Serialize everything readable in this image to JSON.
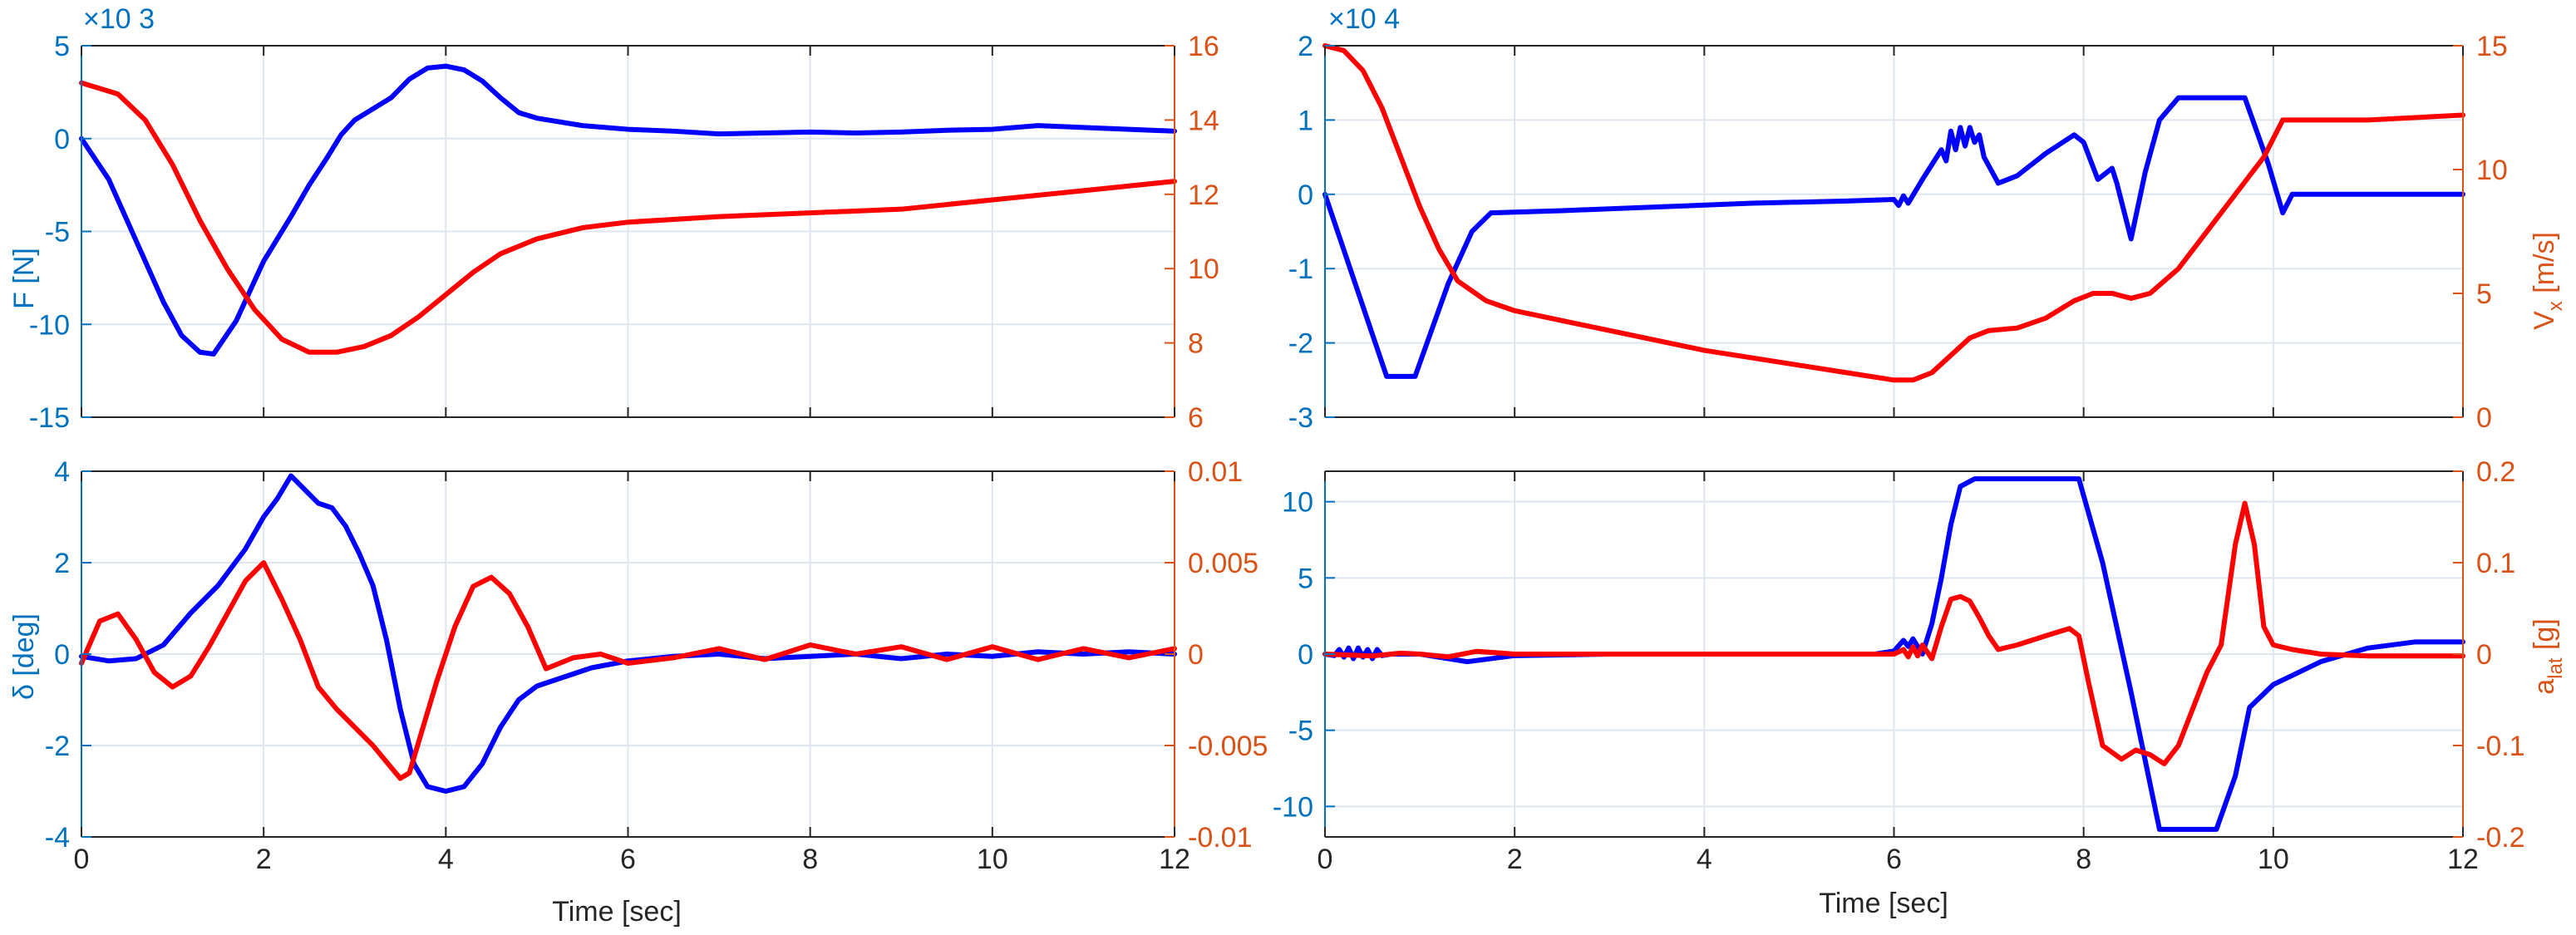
{
  "colors": {
    "left_axis": "#0072BD",
    "right_axis": "#D95319",
    "series_left": "#0000FF",
    "series_right": "#FF0000",
    "grid": "#dfe6ee",
    "axis": "#262626"
  },
  "chart_data": [
    {
      "type": "line",
      "title": "",
      "xlabel": "",
      "xlim": [
        0,
        12
      ],
      "xticks": [
        0,
        2,
        4,
        6,
        8,
        10,
        12
      ],
      "grid": true,
      "yleft": {
        "label": "F [N]",
        "exponent": "×10 3",
        "lim": [
          -15,
          5
        ],
        "ticks": [
          -15,
          -10,
          -5,
          0,
          5
        ],
        "tick_labels": [
          "-15",
          "-10",
          "-5",
          "0",
          "5"
        ]
      },
      "yright": {
        "label": "",
        "lim": [
          6,
          16
        ],
        "ticks": [
          6,
          8,
          10,
          12,
          14,
          16
        ],
        "tick_labels": [
          "6",
          "8",
          "10",
          "12",
          "14",
          "16"
        ]
      },
      "series": [
        {
          "axis": "left",
          "x": [
            0,
            0.3,
            0.6,
            0.9,
            1.1,
            1.3,
            1.45,
            1.7,
            2.0,
            2.3,
            2.5,
            2.7,
            2.85,
            3.0,
            3.2,
            3.4,
            3.6,
            3.8,
            4.0,
            4.2,
            4.4,
            4.6,
            4.8,
            5.0,
            5.5,
            6.0,
            6.5,
            7.0,
            7.5,
            8.0,
            8.5,
            9.0,
            9.5,
            10.0,
            10.5,
            11.0,
            11.5,
            12.0
          ],
          "y": [
            0,
            -2.2,
            -5.5,
            -8.8,
            -10.6,
            -11.5,
            -11.6,
            -9.8,
            -6.6,
            -4.2,
            -2.5,
            -1.0,
            0.2,
            1.0,
            1.6,
            2.2,
            3.2,
            3.8,
            3.9,
            3.7,
            3.1,
            2.2,
            1.4,
            1.1,
            0.7,
            0.5,
            0.4,
            0.25,
            0.3,
            0.35,
            0.3,
            0.35,
            0.45,
            0.5,
            0.7,
            0.6,
            0.5,
            0.4
          ]
        },
        {
          "axis": "right",
          "x": [
            0,
            0.4,
            0.7,
            1.0,
            1.3,
            1.6,
            1.9,
            2.2,
            2.5,
            2.8,
            3.1,
            3.4,
            3.7,
            4.0,
            4.3,
            4.6,
            5.0,
            5.5,
            6.0,
            7.0,
            8.0,
            9.0,
            10.0,
            11.0,
            12.0
          ],
          "y": [
            15.0,
            14.7,
            14.0,
            12.8,
            11.3,
            10.0,
            8.9,
            8.1,
            7.75,
            7.75,
            7.9,
            8.2,
            8.7,
            9.3,
            9.9,
            10.4,
            10.8,
            11.1,
            11.25,
            11.4,
            11.5,
            11.6,
            11.85,
            12.1,
            12.35
          ]
        }
      ]
    },
    {
      "type": "line",
      "title": "",
      "xlabel": "Time [sec]",
      "xlim": [
        0,
        12
      ],
      "xticks": [
        0,
        2,
        4,
        6,
        8,
        10,
        12
      ],
      "xtick_labels": [
        "0",
        "2",
        "4",
        "6",
        "8",
        "10",
        "12"
      ],
      "grid": true,
      "yleft": {
        "label": "δ [deg]",
        "lim": [
          -4,
          4
        ],
        "ticks": [
          -4,
          -2,
          0,
          2,
          4
        ],
        "tick_labels": [
          "-4",
          "-2",
          "0",
          "2",
          "4"
        ]
      },
      "yright": {
        "label": "",
        "lim": [
          -0.01,
          0.01
        ],
        "ticks": [
          -0.01,
          -0.005,
          0,
          0.005,
          0.01
        ],
        "tick_labels": [
          "-0.01",
          "-0.005",
          "0",
          "0.005",
          "0.01"
        ]
      },
      "series": [
        {
          "axis": "left",
          "x": [
            0,
            0.3,
            0.6,
            0.9,
            1.2,
            1.5,
            1.8,
            2.0,
            2.15,
            2.3,
            2.45,
            2.6,
            2.75,
            2.9,
            3.05,
            3.2,
            3.35,
            3.5,
            3.65,
            3.8,
            4.0,
            4.2,
            4.4,
            4.6,
            4.8,
            5.0,
            5.3,
            5.6,
            6.0,
            6.5,
            7.0,
            7.5,
            8.0,
            8.5,
            9.0,
            9.5,
            10.0,
            10.5,
            11.0,
            11.5,
            12.0
          ],
          "y": [
            -0.05,
            -0.15,
            -0.1,
            0.2,
            0.9,
            1.5,
            2.3,
            3.0,
            3.4,
            3.9,
            3.6,
            3.3,
            3.2,
            2.8,
            2.2,
            1.5,
            0.3,
            -1.2,
            -2.4,
            -2.9,
            -3.0,
            -2.9,
            -2.4,
            -1.6,
            -1.0,
            -0.7,
            -0.5,
            -0.3,
            -0.15,
            -0.05,
            0.0,
            -0.1,
            -0.05,
            0.0,
            -0.1,
            0.0,
            -0.05,
            0.05,
            0.0,
            0.05,
            0.0
          ]
        },
        {
          "axis": "right",
          "x": [
            0,
            0.2,
            0.4,
            0.6,
            0.8,
            1.0,
            1.2,
            1.4,
            1.6,
            1.8,
            2.0,
            2.2,
            2.4,
            2.6,
            2.8,
            3.0,
            3.2,
            3.4,
            3.5,
            3.6,
            3.75,
            3.9,
            4.1,
            4.3,
            4.5,
            4.7,
            4.9,
            5.1,
            5.4,
            5.7,
            6.0,
            6.5,
            7.0,
            7.5,
            8.0,
            8.5,
            9.0,
            9.5,
            10.0,
            10.5,
            11.0,
            11.5,
            12.0
          ],
          "y": [
            -0.0005,
            0.0018,
            0.0022,
            0.0008,
            -0.001,
            -0.0018,
            -0.0012,
            0.0004,
            0.0022,
            0.004,
            0.005,
            0.003,
            0.0008,
            -0.0018,
            -0.003,
            -0.004,
            -0.005,
            -0.0062,
            -0.0068,
            -0.0065,
            -0.004,
            -0.0015,
            0.0015,
            0.0037,
            0.0042,
            0.0033,
            0.0015,
            -0.0008,
            -0.0002,
            0.0,
            -0.0005,
            -0.0002,
            0.0003,
            -0.0003,
            0.0005,
            0.0,
            0.0004,
            -0.0003,
            0.0004,
            -0.0003,
            0.0003,
            -0.0002,
            0.0003
          ]
        }
      ]
    },
    {
      "type": "line",
      "title": "",
      "xlabel": "",
      "xlim": [
        0,
        12
      ],
      "xticks": [
        0,
        2,
        4,
        6,
        8,
        10,
        12
      ],
      "grid": true,
      "yleft": {
        "label": "",
        "exponent": "×10 4",
        "lim": [
          -3,
          2
        ],
        "ticks": [
          -3,
          -2,
          -1,
          0,
          1,
          2
        ],
        "tick_labels": [
          "-3",
          "-2",
          "-1",
          "0",
          "1",
          "2"
        ]
      },
      "yright": {
        "label": "V x [m/s]",
        "lim": [
          0,
          15
        ],
        "ticks": [
          0,
          5,
          10,
          15
        ],
        "tick_labels": [
          "0",
          "5",
          "10",
          "15"
        ]
      },
      "series": [
        {
          "axis": "left",
          "x": [
            0,
            0.65,
            0.95,
            1.3,
            1.55,
            1.75,
            2.5,
            3.5,
            4.5,
            5.5,
            6.0,
            6.05,
            6.1,
            6.15,
            6.3,
            6.4,
            6.5,
            6.55,
            6.6,
            6.65,
            6.7,
            6.75,
            6.8,
            6.85,
            6.9,
            6.95,
            7.1,
            7.3,
            7.6,
            7.9,
            8.0,
            8.15,
            8.3,
            8.35,
            8.5,
            8.65,
            8.8,
            9.0,
            9.7,
            9.95,
            10.1,
            10.2,
            11.0,
            12.0
          ],
          "y": [
            0,
            -2.45,
            -2.45,
            -1.2,
            -0.5,
            -0.25,
            -0.22,
            -0.17,
            -0.12,
            -0.09,
            -0.07,
            -0.15,
            -0.02,
            -0.12,
            0.2,
            0.4,
            0.6,
            0.45,
            0.85,
            0.6,
            0.9,
            0.65,
            0.9,
            0.7,
            0.8,
            0.5,
            0.15,
            0.25,
            0.55,
            0.8,
            0.7,
            0.2,
            0.35,
            0.15,
            -0.6,
            0.3,
            1.0,
            1.3,
            1.3,
            0.4,
            -0.25,
            0.0,
            0.0,
            0.0
          ]
        },
        {
          "axis": "right",
          "x": [
            0,
            0.2,
            0.4,
            0.6,
            0.8,
            1.0,
            1.2,
            1.4,
            1.7,
            2.0,
            3.0,
            4.0,
            5.0,
            5.5,
            6.0,
            6.2,
            6.4,
            6.6,
            6.8,
            7.0,
            7.3,
            7.6,
            7.9,
            8.1,
            8.3,
            8.5,
            8.7,
            9.0,
            9.3,
            9.6,
            9.9,
            10.1,
            10.3,
            11.0,
            12.0
          ],
          "y": [
            15.0,
            14.8,
            14.0,
            12.5,
            10.5,
            8.5,
            6.8,
            5.5,
            4.7,
            4.3,
            3.5,
            2.7,
            2.1,
            1.8,
            1.5,
            1.5,
            1.8,
            2.5,
            3.2,
            3.5,
            3.6,
            4.0,
            4.7,
            5.0,
            5.0,
            4.8,
            5.0,
            6.0,
            7.5,
            9.0,
            10.5,
            12.0,
            12.0,
            12.0,
            12.2
          ]
        }
      ]
    },
    {
      "type": "line",
      "title": "",
      "xlabel": "Time [sec]",
      "xlim": [
        0,
        12
      ],
      "xticks": [
        0,
        2,
        4,
        6,
        8,
        10,
        12
      ],
      "xtick_labels": [
        "0",
        "2",
        "4",
        "6",
        "8",
        "10",
        "12"
      ],
      "grid": true,
      "yleft": {
        "label": "",
        "lim": [
          -12,
          12
        ],
        "ticks": [
          -10,
          -5,
          0,
          5,
          10
        ],
        "tick_labels": [
          "-10",
          "-5",
          "0",
          "5",
          "10"
        ]
      },
      "yright": {
        "label": "a lat [g]",
        "lim": [
          -0.2,
          0.2
        ],
        "ticks": [
          -0.2,
          -0.1,
          0,
          0.1,
          0.2
        ],
        "tick_labels": [
          "-0.2",
          "-0.1",
          "0",
          "0.1",
          "0.2"
        ]
      },
      "series": [
        {
          "axis": "left",
          "x": [
            0,
            0.1,
            0.15,
            0.2,
            0.25,
            0.3,
            0.35,
            0.4,
            0.45,
            0.5,
            0.55,
            0.6,
            0.7,
            1.0,
            1.5,
            2.0,
            3.0,
            4.0,
            5.0,
            5.8,
            6.0,
            6.1,
            6.15,
            6.2,
            6.3,
            6.4,
            6.5,
            6.6,
            6.7,
            6.85,
            7.95,
            8.2,
            8.5,
            8.8,
            9.4,
            9.6,
            9.75,
            10.0,
            10.5,
            11.0,
            11.5,
            12.0
          ],
          "y": [
            0,
            -0.1,
            0.3,
            -0.2,
            0.4,
            -0.3,
            0.4,
            -0.2,
            0.3,
            -0.3,
            0.3,
            -0.1,
            0,
            0,
            -0.5,
            -0.1,
            0,
            0,
            0,
            0,
            0.2,
            0.9,
            0.5,
            1.0,
            0.0,
            2.0,
            5.0,
            8.5,
            11.0,
            11.5,
            11.5,
            6.0,
            -2.5,
            -11.5,
            -11.5,
            -8.0,
            -3.5,
            -2.0,
            -0.5,
            0.4,
            0.8,
            0.8
          ]
        },
        {
          "axis": "right",
          "x": [
            0,
            0.5,
            0.8,
            1.0,
            1.3,
            1.6,
            2.0,
            3.0,
            4.0,
            5.0,
            5.8,
            6.0,
            6.1,
            6.15,
            6.2,
            6.25,
            6.3,
            6.4,
            6.5,
            6.6,
            6.7,
            6.8,
            6.9,
            7.0,
            7.1,
            7.3,
            7.6,
            7.85,
            7.95,
            8.05,
            8.2,
            8.4,
            8.55,
            8.7,
            8.85,
            9.0,
            9.15,
            9.3,
            9.45,
            9.6,
            9.7,
            9.8,
            9.9,
            10.0,
            10.2,
            10.5,
            11.0,
            12.0
          ],
          "y": [
            0,
            -0.002,
            0.001,
            0,
            -0.003,
            0.003,
            0,
            0,
            0,
            0,
            0,
            0,
            0.005,
            -0.003,
            0.008,
            -0.002,
            0.01,
            -0.005,
            0.03,
            0.06,
            0.063,
            0.058,
            0.04,
            0.02,
            0.005,
            0.01,
            0.02,
            0.028,
            0.02,
            -0.03,
            -0.1,
            -0.115,
            -0.105,
            -0.11,
            -0.12,
            -0.1,
            -0.06,
            -0.02,
            0.01,
            0.12,
            0.165,
            0.12,
            0.03,
            0.01,
            0.005,
            0.0,
            -0.002,
            -0.002
          ]
        }
      ]
    }
  ]
}
